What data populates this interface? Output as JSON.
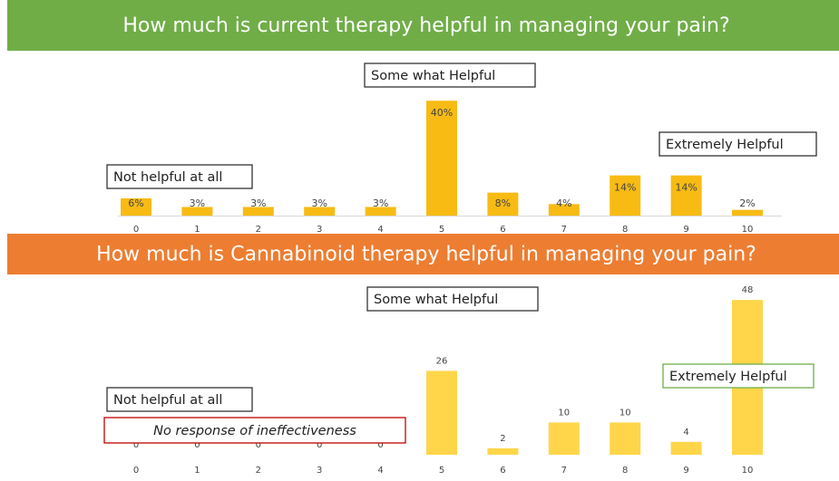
{
  "chart_data": [
    {
      "type": "bar",
      "title": "How much is current therapy helpful in managing your pain?",
      "banner_color": "#70ad47",
      "categories": [
        "0",
        "1",
        "2",
        "3",
        "4",
        "5",
        "6",
        "7",
        "8",
        "9",
        "10"
      ],
      "values": [
        6,
        3,
        3,
        3,
        3,
        40,
        8,
        4,
        14,
        14,
        2
      ],
      "value_labels": [
        "6%",
        "3%",
        "3%",
        "3%",
        "3%",
        "40%",
        "8%",
        "4%",
        "14%",
        "14%",
        "2%"
      ],
      "color": "#f7bb14",
      "annotations": [
        "Some what Helpful",
        "Extremely Helpful",
        "Not helpful at all"
      ]
    },
    {
      "type": "bar",
      "title": "How much is Cannabinoid therapy helpful in managing your pain?",
      "banner_color": "#ed7d31",
      "categories": [
        "0",
        "1",
        "2",
        "3",
        "4",
        "5",
        "6",
        "7",
        "8",
        "9",
        "10"
      ],
      "values": [
        0,
        0,
        0,
        0,
        0,
        26,
        2,
        10,
        10,
        4,
        48
      ],
      "color": "#ffd54a",
      "annotations": [
        "Some what Helpful",
        "Extremely Helpful",
        "Not helpful at all",
        "No response of ineffectiveness"
      ]
    }
  ]
}
